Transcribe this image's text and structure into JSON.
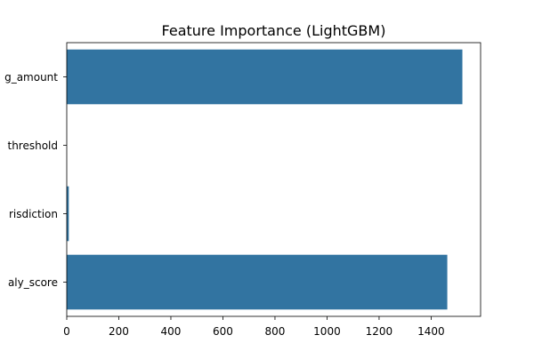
{
  "chart_data": {
    "type": "bar",
    "orientation": "horizontal",
    "title": "Feature Importance (LightGBM)",
    "xlabel": "",
    "ylabel": "",
    "categories": [
      "g_amount",
      "threshold",
      "risdiction",
      "aly_score"
    ],
    "values": [
      1520,
      0,
      8,
      1462
    ],
    "xlim": [
      0,
      1590
    ],
    "xticks": [
      0,
      200,
      400,
      600,
      800,
      1000,
      1200,
      1400
    ],
    "grid": false,
    "legend": "none",
    "bar_color": "#3274a1"
  }
}
